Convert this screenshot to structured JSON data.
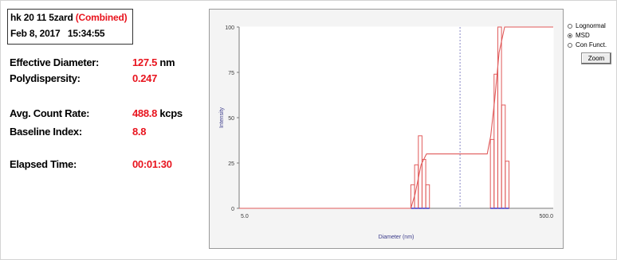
{
  "sample": {
    "name": "hk 20 11 5zard",
    "tag": "(Combined)",
    "datetime": "Feb 8, 2017   15:34:55"
  },
  "stats": [
    {
      "label": "Effective Diameter:",
      "value": "127.5",
      "unit": " nm"
    },
    {
      "label": "Polydispersity:",
      "value": "0.247",
      "unit": ""
    },
    {
      "label": "Avg. Count Rate:",
      "value": "488.8",
      "unit": " kcps"
    },
    {
      "label": "Baseline Index:",
      "value": "8.8",
      "unit": ""
    },
    {
      "label": "Elapsed Time:",
      "value": "00:01:30",
      "unit": ""
    }
  ],
  "options": {
    "items": [
      "Lognormal",
      "MSD",
      "Con Funct."
    ],
    "selected": "MSD",
    "zoom_label": "Zoom"
  },
  "colors": {
    "accent_red": "#e8141e",
    "histogram": "#e05a5a",
    "axis_blue": "#3a3ac8"
  },
  "chart_data": {
    "type": "bar",
    "xlabel": "Diameter (nm)",
    "ylabel": "Intensity",
    "x_scale": "log",
    "xlim": [
      5.0,
      500.0
    ],
    "ylim": [
      0,
      100
    ],
    "x_ticks": [
      "5.0",
      "500.0"
    ],
    "y_ticks": [
      "100",
      "75",
      "50",
      "25",
      "0"
    ],
    "effective_diameter_marker": 127.5,
    "histogram": {
      "name": "Intensity",
      "bins": [
        {
          "d": 62,
          "value": 13
        },
        {
          "d": 65.5,
          "value": 24
        },
        {
          "d": 69.2,
          "value": 40
        },
        {
          "d": 73.1,
          "value": 27
        },
        {
          "d": 77.2,
          "value": 13
        },
        {
          "d": 199,
          "value": 38
        },
        {
          "d": 210,
          "value": 74
        },
        {
          "d": 222,
          "value": 100
        },
        {
          "d": 234.5,
          "value": 57
        },
        {
          "d": 247.7,
          "value": 26
        }
      ]
    },
    "cumulative": {
      "name": "Cumulative",
      "points": [
        [
          5.0,
          0
        ],
        [
          62,
          0
        ],
        [
          66,
          8
        ],
        [
          72,
          24
        ],
        [
          78,
          30
        ],
        [
          190,
          30
        ],
        [
          200,
          40
        ],
        [
          212,
          60
        ],
        [
          226,
          86
        ],
        [
          245,
          100
        ],
        [
          500,
          100
        ]
      ]
    }
  }
}
